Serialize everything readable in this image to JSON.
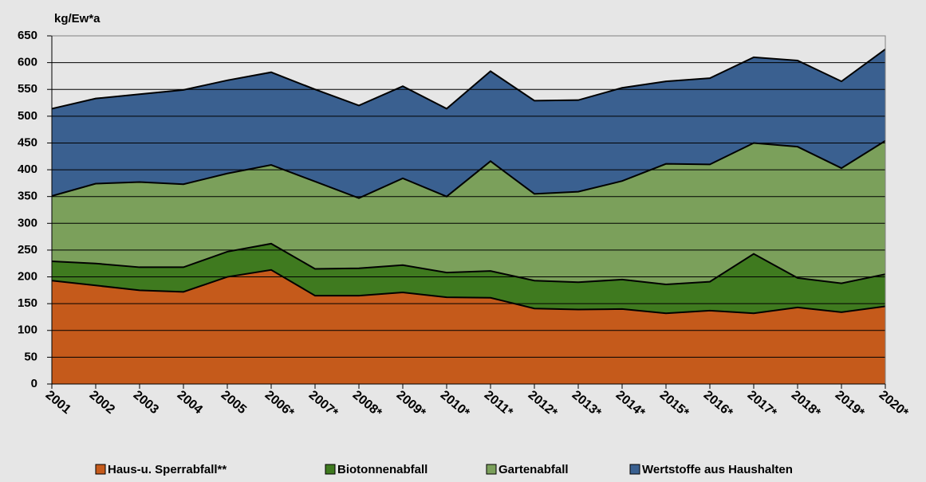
{
  "chart_data": {
    "type": "stacked_area",
    "y_label": "kg/Ew*a",
    "categories": [
      "2001",
      "2002",
      "2003",
      "2004",
      "2005",
      "2006*",
      "2007*",
      "2008*",
      "2009*",
      "2010*",
      "2011*",
      "2012*",
      "2013*",
      "2014*",
      "2015*",
      "2016*",
      "2017*",
      "2018*",
      "2019*",
      "2020*"
    ],
    "series": [
      {
        "name": "Haus-u. Sperrabfall**",
        "color": "#c55a1b",
        "values": [
          193,
          184,
          175,
          172,
          200,
          213,
          165,
          165,
          171,
          162,
          161,
          141,
          139,
          140,
          132,
          137,
          132,
          143,
          134,
          145
        ]
      },
      {
        "name": "Biotonnenabfall",
        "color": "#3f7a1f",
        "values": [
          36,
          41,
          43,
          46,
          47,
          49,
          50,
          51,
          51,
          46,
          50,
          52,
          51,
          55,
          54,
          54,
          111,
          55,
          54,
          60
        ]
      },
      {
        "name": "Gartenabfall",
        "color": "#7ba05b",
        "values": [
          122,
          149,
          159,
          155,
          146,
          147,
          163,
          131,
          162,
          142,
          205,
          162,
          169,
          184,
          225,
          219,
          207,
          245,
          215,
          249
        ]
      },
      {
        "name": "Wertstoffe aus Haushalten",
        "color": "#3a6090",
        "values": [
          163,
          159,
          164,
          176,
          174,
          173,
          172,
          173,
          172,
          164,
          168,
          174,
          171,
          174,
          154,
          161,
          160,
          161,
          162,
          171
        ]
      }
    ],
    "ylim": [
      0,
      650
    ],
    "yticks": [
      0,
      50,
      100,
      150,
      200,
      250,
      300,
      350,
      400,
      450,
      500,
      550,
      600,
      650
    ],
    "grid": true
  }
}
